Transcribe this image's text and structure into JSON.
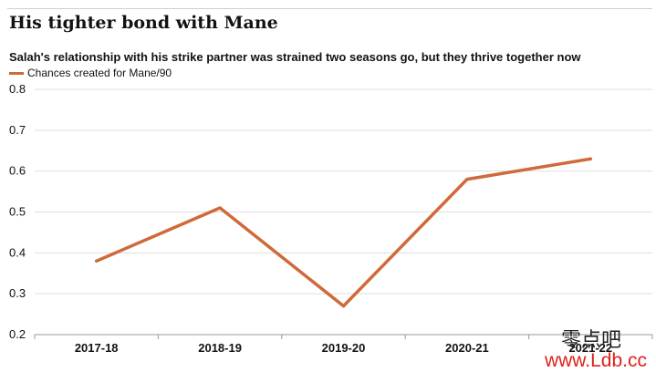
{
  "header": {
    "title": "His tighter bond with Mane",
    "subtitle": "Salah's relationship with his strike partner was strained two seasons go, but they thrive together now"
  },
  "colors": {
    "series": "#cf6a3a",
    "grid": "#dedede",
    "axis": "#9a9a9a",
    "text": "#121212"
  },
  "watermark": {
    "chinese": "零点吧",
    "url": "www.Ldb.cc"
  },
  "chart_data": {
    "type": "line",
    "categories": [
      "2017-18",
      "2018-19",
      "2019-20",
      "2020-21",
      "2021-22"
    ],
    "series": [
      {
        "name": "Chances created for Mane/90",
        "values": [
          0.38,
          0.51,
          0.27,
          0.58,
          0.63
        ]
      }
    ],
    "ylim": [
      0.2,
      0.8
    ],
    "yticks": [
      0.2,
      0.3,
      0.4,
      0.5,
      0.6,
      0.7,
      0.8
    ],
    "grid": true,
    "legend": "top-left"
  }
}
